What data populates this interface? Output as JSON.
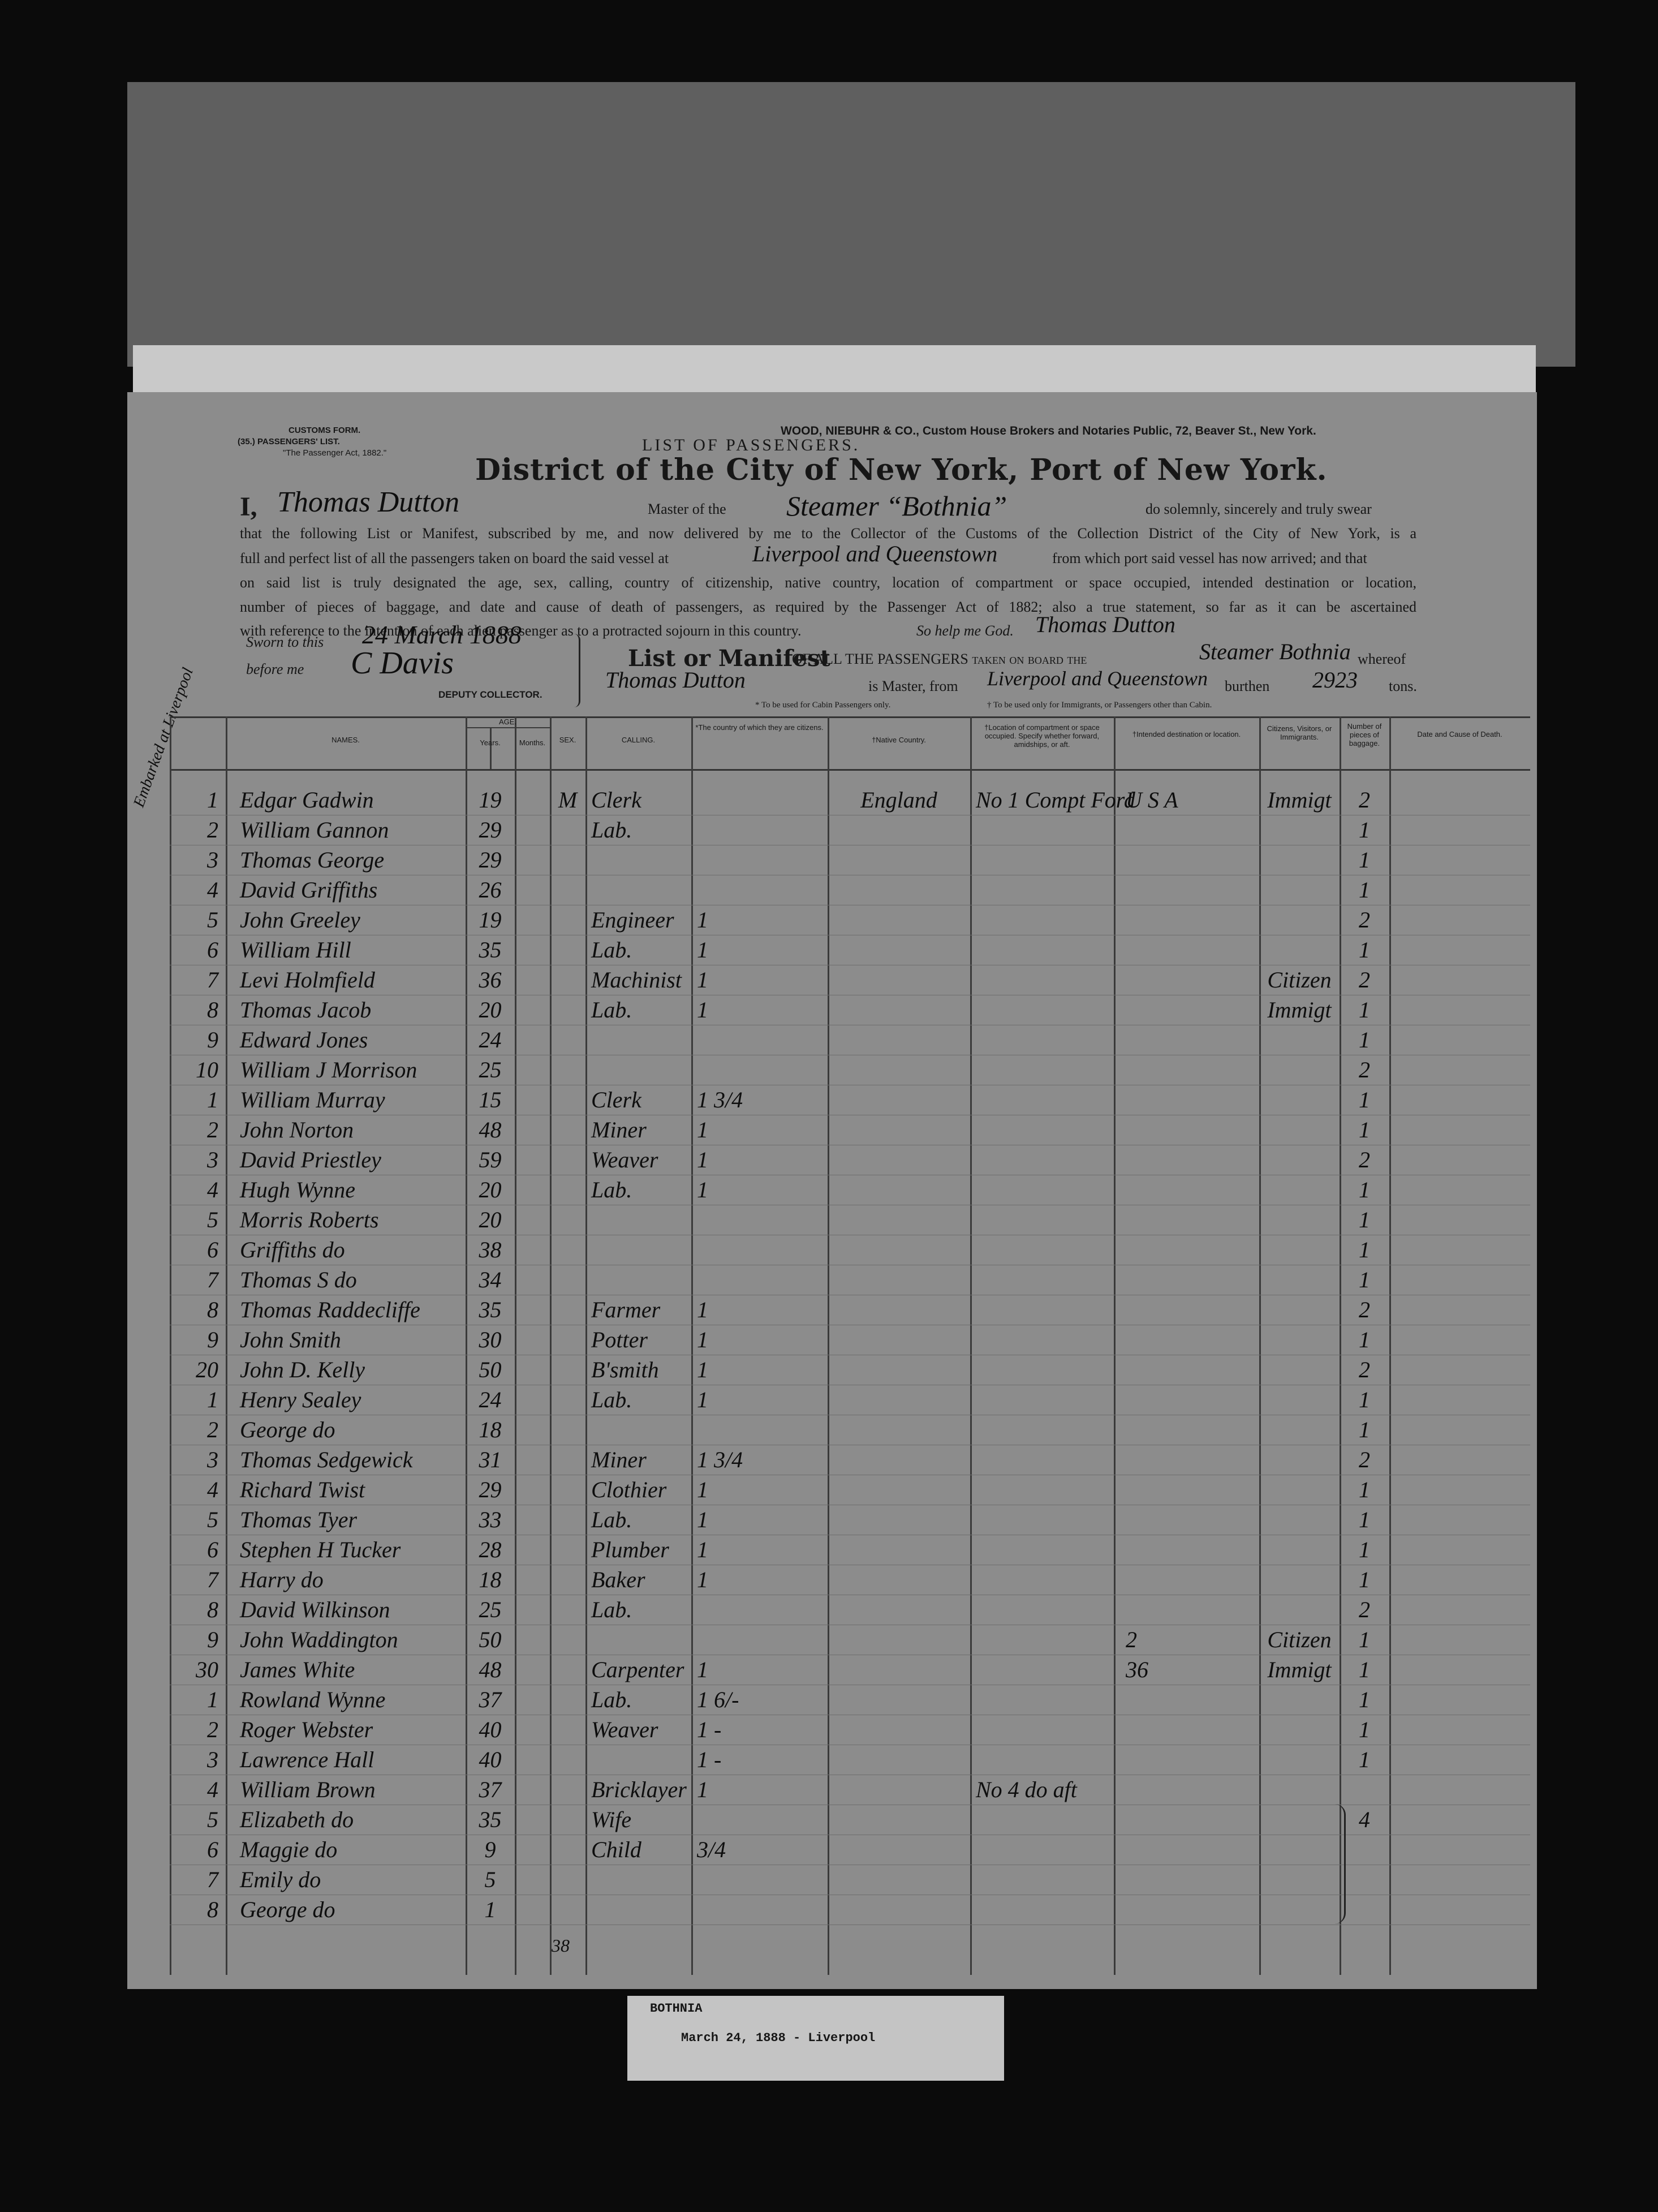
{
  "header": {
    "customs_form": "CUSTOMS FORM.",
    "list_no": "(35.) PASSENGERS' LIST.",
    "act": "\"The Passenger Act, 1882.\"",
    "firm": "WOOD, NIEBUHR & CO., Custom House Brokers and Notaries Public, 72, Beaver St., New York.",
    "list_title": "LIST OF PASSENGERS.",
    "district": "District of the City of New York, Port of New York."
  },
  "oath": {
    "i": "I,",
    "master_name": "Thomas Dutton",
    "master_of": "Master of the",
    "vessel": "Steamer “Bothnia”",
    "swear": "do solemnly, sincerely and truly swear",
    "line2": "that the following List or Manifest, subscribed by me, and now delivered by me to the Collector of the Customs of the Collection District of the City of New York, is a",
    "line3a": "full and perfect list of all the passengers taken on board the said vessel at",
    "ports": "Liverpool and Queenstown",
    "line3b": "from which port said vessel has now arrived; and that",
    "line4": "on said list is truly designated the age, sex, calling, country of citizenship, native country, location of compartment or space occupied, intended destination or location,",
    "line5": "number of pieces of baggage, and date and cause of death of passengers, as required by the Passenger Act of 1882; also a true statement, so far as it can be ascertained",
    "line6": "with reference to the intention of each alien passenger as to a protracted sojourn in this country.",
    "god": "So help me God.",
    "signature": "Thomas Dutton"
  },
  "sworn": {
    "sworn_to": "Sworn to this",
    "date": "24 March 1888",
    "before": "before me",
    "collector": "C Davis",
    "deputy": "DEPUTY COLLECTOR."
  },
  "manifest": {
    "list": "List or Manifest",
    "all": "OF ALL THE PASSENGERS taken on board the",
    "vessel": "Steamer Bothnia",
    "whereof": "whereof",
    "master": "Thomas Dutton",
    "is_master": "is Master, from",
    "ports": "Liverpool and Queenstown",
    "burthen": "burthen",
    "tons_value": "2923",
    "tons": "tons.",
    "cabin_note": "* To be used for Cabin Passengers only.",
    "immigrant_note": "† To be used only for Immigrants, or Passengers other than Cabin."
  },
  "table": {
    "columns": {
      "names": "NAMES.",
      "age": "AGE.",
      "years": "Years.",
      "months": "Months.",
      "sex": "SEX.",
      "calling": "CALLING.",
      "citizenship": "*The country of which they are citizens.",
      "native": "†Native Country.",
      "location": "†Location of compartment or space occupied. Specify whether forward, amidships, or aft.",
      "destination": "†Intended destination or location.",
      "status": "Citizens, Visitors, or Immigrants.",
      "baggage": "Number of pieces of baggage.",
      "death": "Date and Cause of Death."
    },
    "margin_note": "Embarked at Liverpool",
    "rows": [
      {
        "no": "1",
        "name": "Edgar Gadwin",
        "age": "19",
        "sex": "M",
        "calling": "Clerk",
        "native": "England",
        "location": "No 1 Compt Ford",
        "destination": "U S A",
        "status": "Immigt",
        "baggage": "2"
      },
      {
        "no": "2",
        "name": "William Gannon",
        "age": "29",
        "calling": "Lab.",
        "baggage": "1"
      },
      {
        "no": "3",
        "name": "Thomas George",
        "age": "29",
        "baggage": "1"
      },
      {
        "no": "4",
        "name": "David Griffiths",
        "age": "26",
        "baggage": "1"
      },
      {
        "no": "5",
        "name": "John Greeley",
        "age": "19",
        "calling": "Engineer",
        "citizenship": "1",
        "baggage": "2"
      },
      {
        "no": "6",
        "name": "William Hill",
        "age": "35",
        "calling": "Lab.",
        "citizenship": "1",
        "baggage": "1"
      },
      {
        "no": "7",
        "name": "Levi Holmfield",
        "age": "36",
        "calling": "Machinist",
        "citizenship": "1",
        "status": "Citizen",
        "baggage": "2"
      },
      {
        "no": "8",
        "name": "Thomas Jacob",
        "age": "20",
        "calling": "Lab.",
        "citizenship": "1",
        "status": "Immigt",
        "baggage": "1"
      },
      {
        "no": "9",
        "name": "Edward Jones",
        "age": "24",
        "baggage": "1"
      },
      {
        "no": "10",
        "name": "William J Morrison",
        "age": "25",
        "baggage": "2"
      },
      {
        "no": "1",
        "name": "William Murray",
        "age": "15",
        "calling": "Clerk",
        "citizenship": "1 3/4",
        "baggage": "1"
      },
      {
        "no": "2",
        "name": "John Norton",
        "age": "48",
        "calling": "Miner",
        "citizenship": "1",
        "baggage": "1"
      },
      {
        "no": "3",
        "name": "David Priestley",
        "age": "59",
        "calling": "Weaver",
        "citizenship": "1",
        "baggage": "2"
      },
      {
        "no": "4",
        "name": "Hugh Wynne",
        "age": "20",
        "calling": "Lab.",
        "citizenship": "1",
        "baggage": "1"
      },
      {
        "no": "5",
        "name": "Morris Roberts",
        "age": "20",
        "baggage": "1"
      },
      {
        "no": "6",
        "name": "Griffiths do",
        "age": "38",
        "baggage": "1"
      },
      {
        "no": "7",
        "name": "Thomas S do",
        "age": "34",
        "baggage": "1"
      },
      {
        "no": "8",
        "name": "Thomas Raddecliffe",
        "age": "35",
        "calling": "Farmer",
        "citizenship": "1",
        "baggage": "2"
      },
      {
        "no": "9",
        "name": "John Smith",
        "age": "30",
        "calling": "Potter",
        "citizenship": "1",
        "baggage": "1"
      },
      {
        "no": "20",
        "name": "John D. Kelly",
        "age": "50",
        "calling": "B'smith",
        "citizenship": "1",
        "baggage": "2"
      },
      {
        "no": "1",
        "name": "Henry Sealey",
        "age": "24",
        "calling": "Lab.",
        "citizenship": "1",
        "baggage": "1"
      },
      {
        "no": "2",
        "name": "George do",
        "age": "18",
        "baggage": "1"
      },
      {
        "no": "3",
        "name": "Thomas Sedgewick",
        "age": "31",
        "calling": "Miner",
        "citizenship": "1 3/4",
        "baggage": "2"
      },
      {
        "no": "4",
        "name": "Richard Twist",
        "age": "29",
        "calling": "Clothier",
        "citizenship": "1",
        "baggage": "1"
      },
      {
        "no": "5",
        "name": "Thomas Tyer",
        "age": "33",
        "calling": "Lab.",
        "citizenship": "1",
        "baggage": "1"
      },
      {
        "no": "6",
        "name": "Stephen H Tucker",
        "age": "28",
        "calling": "Plumber",
        "citizenship": "1",
        "baggage": "1"
      },
      {
        "no": "7",
        "name": "Harry do",
        "age": "18",
        "calling": "Baker",
        "citizenship": "1",
        "baggage": "1"
      },
      {
        "no": "8",
        "name": "David Wilkinson",
        "age": "25",
        "calling": "Lab.",
        "baggage": "2"
      },
      {
        "no": "9",
        "name": "John Waddington",
        "age": "50",
        "destination": "2",
        "status": "Citizen",
        "baggage": "1"
      },
      {
        "no": "30",
        "name": "James White",
        "age": "48",
        "calling": "Carpenter",
        "citizenship": "1",
        "destination": "36",
        "status": "Immigt",
        "baggage": "1"
      },
      {
        "no": "1",
        "name": "Rowland Wynne",
        "age": "37",
        "calling": "Lab.",
        "citizenship": "1 6/-",
        "baggage": "1"
      },
      {
        "no": "2",
        "name": "Roger Webster",
        "age": "40",
        "calling": "Weaver",
        "citizenship": "1 -",
        "baggage": "1"
      },
      {
        "no": "3",
        "name": "Lawrence Hall",
        "age": "40",
        "citizenship": "1 -",
        "baggage": "1"
      },
      {
        "no": "4",
        "name": "William Brown",
        "age": "37",
        "calling": "Bricklayer",
        "citizenship": "1",
        "location": "No 4 do aft"
      },
      {
        "no": "5",
        "name": "Elizabeth do",
        "age": "35",
        "calling": "Wife",
        "baggage": "4"
      },
      {
        "no": "6",
        "name": "Maggie do",
        "age": "9",
        "calling": "Child",
        "citizenship": "3/4"
      },
      {
        "no": "7",
        "name": "Emily do",
        "age": "5"
      },
      {
        "no": "8",
        "name": "George do",
        "age": "1"
      }
    ],
    "total": "38"
  },
  "label": {
    "ship": "BOTHNIA",
    "date": "March 24, 1888 - Liverpool"
  }
}
